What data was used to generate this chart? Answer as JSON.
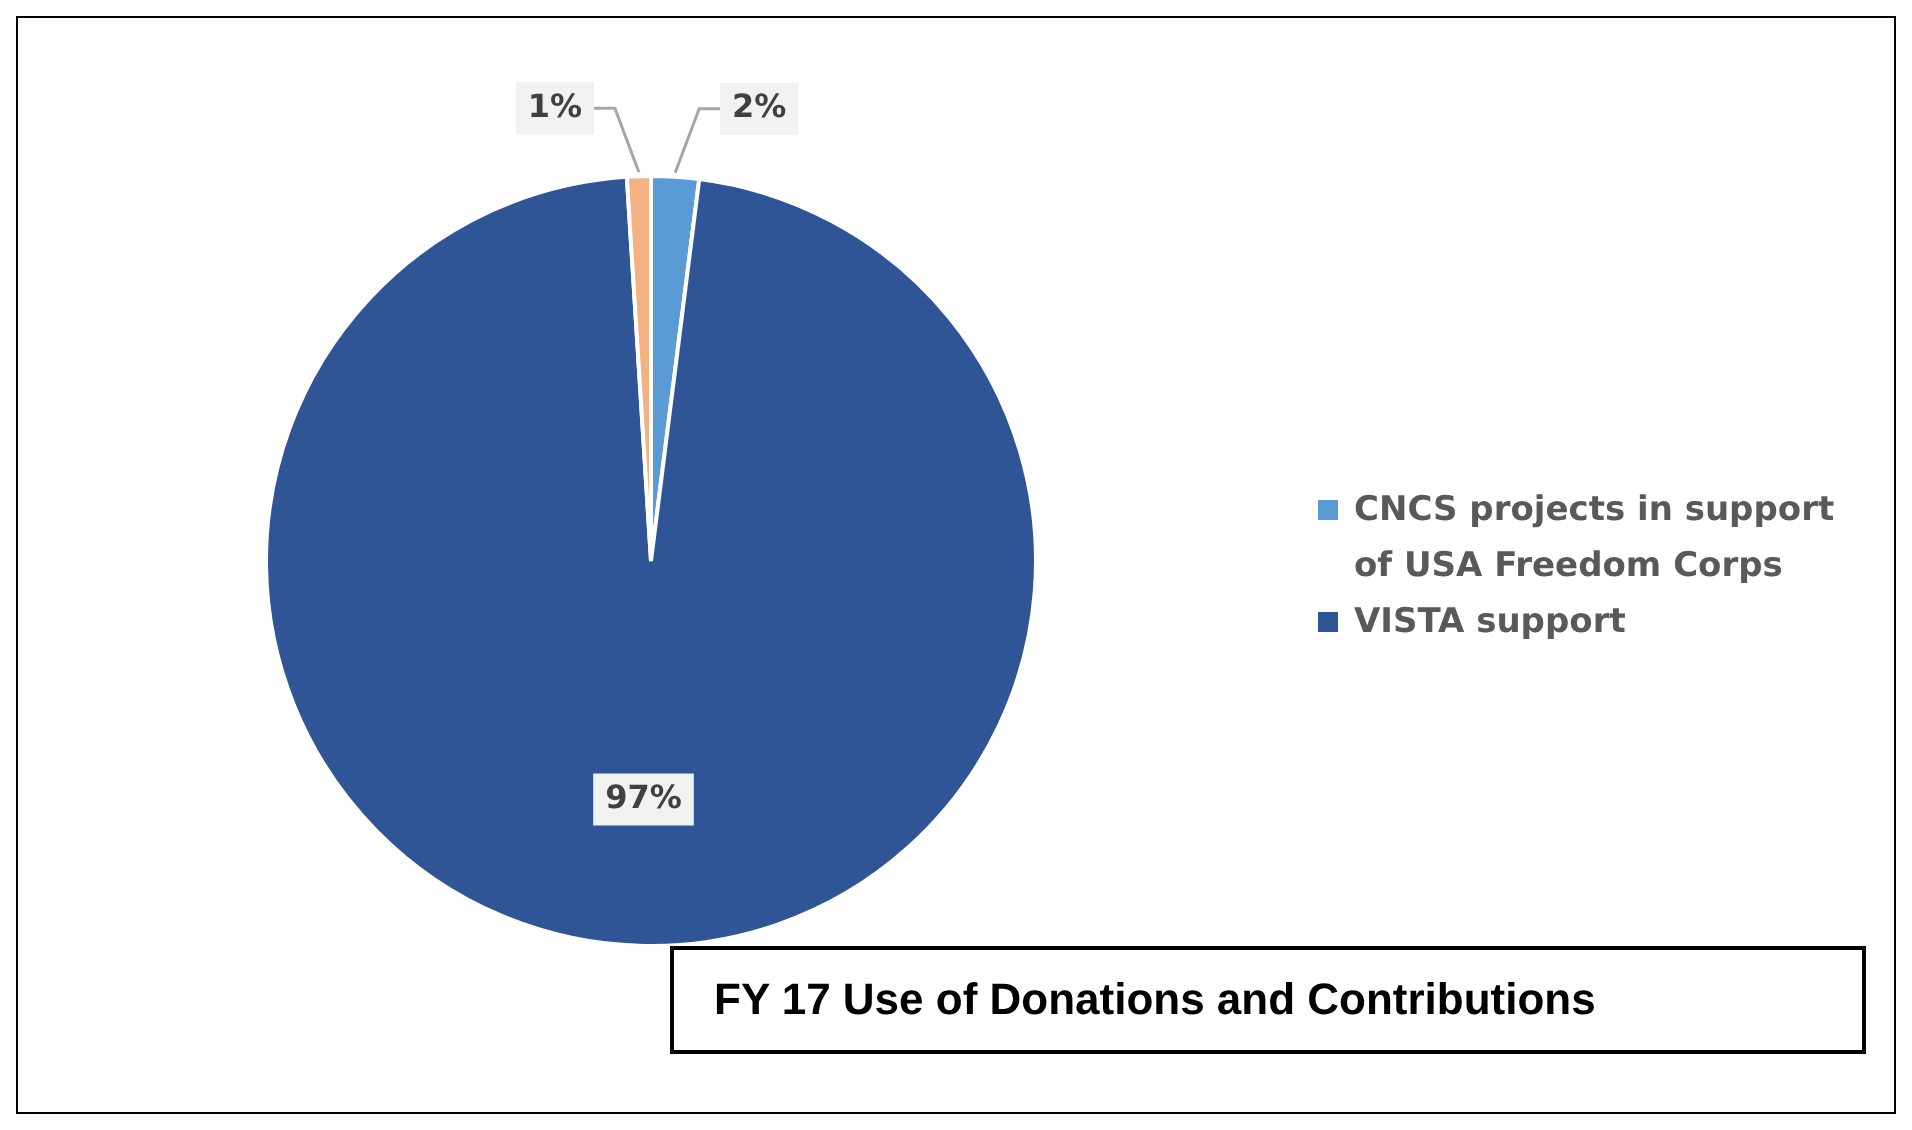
{
  "chart_data": {
    "type": "pie",
    "title": "FY 17 Use of Donations and Contributions",
    "categories": [
      "CNCS projects in support of USA Freedom Corps",
      "VISTA support",
      null
    ],
    "values": [
      2,
      97,
      1
    ],
    "colors": [
      "#5b9bd5",
      "#2f5597",
      "#f4b183"
    ],
    "value_labels": [
      "2%",
      "97%",
      "1%"
    ],
    "legend": "right"
  }
}
